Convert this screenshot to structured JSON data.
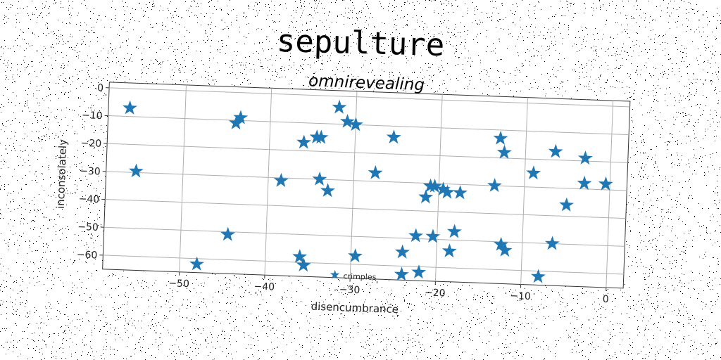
{
  "title": "sepulture",
  "chart_data": {
    "type": "scatter",
    "title": "omnirevealing",
    "xlabel": "disencumbrance",
    "ylabel": "inconsolately",
    "xlim": [
      -59,
      2
    ],
    "ylim": [
      -65,
      2
    ],
    "xticks": [
      -50,
      -40,
      -30,
      -20,
      -10,
      0
    ],
    "yticks": [
      0,
      -10,
      -20,
      -30,
      -40,
      -50,
      -60
    ],
    "grid": true,
    "legend": "lower center",
    "marker": "star",
    "color": "#1f77b4",
    "series": [
      {
        "name": "crimples",
        "points": [
          [
            -56.5,
            -7
          ],
          [
            -55.5,
            -29.5
          ],
          [
            -48,
            -62
          ],
          [
            -44.5,
            -51
          ],
          [
            -44,
            -11
          ],
          [
            -43.5,
            -9
          ],
          [
            -38.5,
            -31
          ],
          [
            -36,
            -17
          ],
          [
            -36,
            -58
          ],
          [
            -35.5,
            -61
          ],
          [
            -34.5,
            -15
          ],
          [
            -34,
            -15
          ],
          [
            -34,
            -30
          ],
          [
            -33,
            -34
          ],
          [
            -32,
            -4
          ],
          [
            -31,
            -9
          ],
          [
            -30,
            -10
          ],
          [
            -29.5,
            -57
          ],
          [
            -27.5,
            -27
          ],
          [
            -25.5,
            -14
          ],
          [
            -24,
            -55
          ],
          [
            -24,
            -63
          ],
          [
            -22.5,
            -49
          ],
          [
            -22,
            -62
          ],
          [
            -21.5,
            -35
          ],
          [
            -21,
            -31
          ],
          [
            -20.5,
            -31
          ],
          [
            -20.5,
            -49
          ],
          [
            -19.5,
            -32
          ],
          [
            -19,
            -33
          ],
          [
            -18.5,
            -54
          ],
          [
            -18,
            -47
          ],
          [
            -17.5,
            -33
          ],
          [
            -13.5,
            -30
          ],
          [
            -13,
            -13
          ],
          [
            -12.5,
            -51
          ],
          [
            -12.5,
            -18
          ],
          [
            -12,
            -53
          ],
          [
            -9,
            -25
          ],
          [
            -8,
            -62
          ],
          [
            -6.5,
            -50
          ],
          [
            -6.5,
            -17
          ],
          [
            -5,
            -36
          ],
          [
            -3,
            -19
          ],
          [
            -3,
            -28
          ],
          [
            -0.5,
            -28
          ]
        ]
      }
    ]
  }
}
